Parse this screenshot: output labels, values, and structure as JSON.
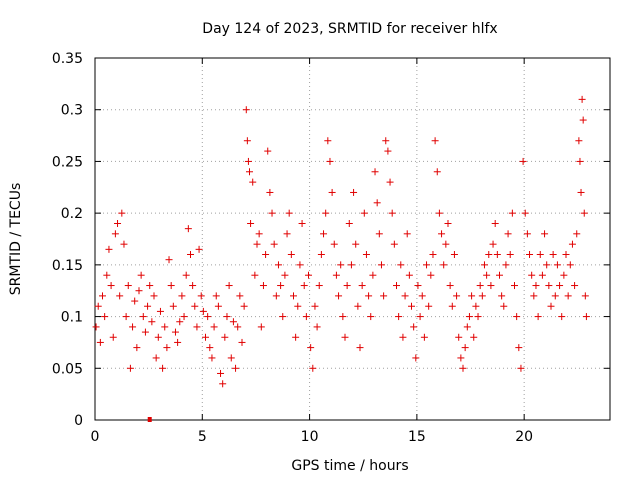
{
  "chart_data": {
    "type": "scatter",
    "title": "Day 124 of 2023, SRMTID for receiver hlfx",
    "xlabel": "GPS time / hours",
    "ylabel": "SRMTID / TECUs",
    "xlim": [
      0,
      24
    ],
    "ylim": [
      0,
      0.35
    ],
    "xticks": [
      0,
      5,
      10,
      15,
      20
    ],
    "xtick_labels": [
      "0",
      "5",
      "10",
      "15",
      "20"
    ],
    "yticks": [
      0,
      0.05,
      0.1,
      0.15,
      0.2,
      0.25,
      0.3,
      0.35
    ],
    "ytick_labels": [
      "0",
      "0.05",
      "0.1",
      "0.15",
      "0.2",
      "0.25",
      "0.3",
      "0.35"
    ],
    "grid": true,
    "marker": "+",
    "color": "#e00000",
    "series": [
      {
        "name": "hlfx",
        "points": [
          [
            0.05,
            0.09
          ],
          [
            0.15,
            0.11
          ],
          [
            0.25,
            0.075
          ],
          [
            0.35,
            0.12
          ],
          [
            0.45,
            0.1
          ],
          [
            0.55,
            0.14
          ],
          [
            0.65,
            0.165
          ],
          [
            0.75,
            0.13
          ],
          [
            0.85,
            0.08
          ],
          [
            0.95,
            0.18
          ],
          [
            1.05,
            0.19
          ],
          [
            1.15,
            0.12
          ],
          [
            1.25,
            0.2
          ],
          [
            1.35,
            0.17
          ],
          [
            1.45,
            0.1
          ],
          [
            1.55,
            0.13
          ],
          [
            1.65,
            0.05
          ],
          [
            1.75,
            0.09
          ],
          [
            1.85,
            0.115
          ],
          [
            1.95,
            0.07
          ],
          [
            2.05,
            0.125
          ],
          [
            2.15,
            0.14
          ],
          [
            2.25,
            0.1
          ],
          [
            2.35,
            0.085
          ],
          [
            2.45,
            0.11
          ],
          [
            2.55,
            0.13
          ],
          [
            2.65,
            0.095
          ],
          [
            2.75,
            0.12
          ],
          [
            2.85,
            0.06
          ],
          [
            2.95,
            0.08
          ],
          [
            3.05,
            0.105
          ],
          [
            3.15,
            0.05
          ],
          [
            3.25,
            0.09
          ],
          [
            3.35,
            0.07
          ],
          [
            3.45,
            0.155
          ],
          [
            3.55,
            0.13
          ],
          [
            3.65,
            0.11
          ],
          [
            3.75,
            0.085
          ],
          [
            3.85,
            0.075
          ],
          [
            3.95,
            0.095
          ],
          [
            4.05,
            0.12
          ],
          [
            4.15,
            0.1
          ],
          [
            4.25,
            0.14
          ],
          [
            4.35,
            0.185
          ],
          [
            4.45,
            0.16
          ],
          [
            4.55,
            0.13
          ],
          [
            4.65,
            0.11
          ],
          [
            4.75,
            0.09
          ],
          [
            4.85,
            0.165
          ],
          [
            4.95,
            0.12
          ],
          [
            5.05,
            0.105
          ],
          [
            5.15,
            0.08
          ],
          [
            5.25,
            0.1
          ],
          [
            5.35,
            0.07
          ],
          [
            5.45,
            0.06
          ],
          [
            5.55,
            0.09
          ],
          [
            5.65,
            0.12
          ],
          [
            5.75,
            0.11
          ],
          [
            5.85,
            0.045
          ],
          [
            5.95,
            0.035
          ],
          [
            6.05,
            0.08
          ],
          [
            6.15,
            0.1
          ],
          [
            6.25,
            0.13
          ],
          [
            6.35,
            0.06
          ],
          [
            6.45,
            0.095
          ],
          [
            6.55,
            0.05
          ],
          [
            6.65,
            0.09
          ],
          [
            6.75,
            0.12
          ],
          [
            6.85,
            0.075
          ],
          [
            6.95,
            0.11
          ],
          [
            7.05,
            0.3
          ],
          [
            7.1,
            0.27
          ],
          [
            7.15,
            0.25
          ],
          [
            7.2,
            0.24
          ],
          [
            7.25,
            0.19
          ],
          [
            7.35,
            0.23
          ],
          [
            7.45,
            0.14
          ],
          [
            7.55,
            0.17
          ],
          [
            7.65,
            0.18
          ],
          [
            7.75,
            0.09
          ],
          [
            7.85,
            0.13
          ],
          [
            7.95,
            0.16
          ],
          [
            8.05,
            0.26
          ],
          [
            8.15,
            0.22
          ],
          [
            8.25,
            0.2
          ],
          [
            8.35,
            0.17
          ],
          [
            8.45,
            0.12
          ],
          [
            8.55,
            0.15
          ],
          [
            8.65,
            0.13
          ],
          [
            8.75,
            0.1
          ],
          [
            8.85,
            0.14
          ],
          [
            8.95,
            0.18
          ],
          [
            9.05,
            0.2
          ],
          [
            9.15,
            0.16
          ],
          [
            9.25,
            0.12
          ],
          [
            9.35,
            0.08
          ],
          [
            9.45,
            0.11
          ],
          [
            9.55,
            0.15
          ],
          [
            9.65,
            0.19
          ],
          [
            9.75,
            0.13
          ],
          [
            9.85,
            0.1
          ],
          [
            9.95,
            0.14
          ],
          [
            10.05,
            0.07
          ],
          [
            10.15,
            0.05
          ],
          [
            10.25,
            0.11
          ],
          [
            10.35,
            0.09
          ],
          [
            10.45,
            0.13
          ],
          [
            10.55,
            0.16
          ],
          [
            10.65,
            0.18
          ],
          [
            10.75,
            0.2
          ],
          [
            10.85,
            0.27
          ],
          [
            10.95,
            0.25
          ],
          [
            11.05,
            0.22
          ],
          [
            11.15,
            0.17
          ],
          [
            11.25,
            0.14
          ],
          [
            11.35,
            0.12
          ],
          [
            11.45,
            0.15
          ],
          [
            11.55,
            0.1
          ],
          [
            11.65,
            0.08
          ],
          [
            11.75,
            0.13
          ],
          [
            11.85,
            0.19
          ],
          [
            11.95,
            0.15
          ],
          [
            12.05,
            0.22
          ],
          [
            12.15,
            0.17
          ],
          [
            12.25,
            0.11
          ],
          [
            12.35,
            0.07
          ],
          [
            12.45,
            0.13
          ],
          [
            12.55,
            0.2
          ],
          [
            12.65,
            0.16
          ],
          [
            12.75,
            0.12
          ],
          [
            12.85,
            0.1
          ],
          [
            12.95,
            0.14
          ],
          [
            13.05,
            0.24
          ],
          [
            13.15,
            0.21
          ],
          [
            13.25,
            0.18
          ],
          [
            13.35,
            0.15
          ],
          [
            13.45,
            0.12
          ],
          [
            13.55,
            0.27
          ],
          [
            13.65,
            0.26
          ],
          [
            13.75,
            0.23
          ],
          [
            13.85,
            0.2
          ],
          [
            13.95,
            0.17
          ],
          [
            14.05,
            0.13
          ],
          [
            14.15,
            0.1
          ],
          [
            14.25,
            0.15
          ],
          [
            14.35,
            0.08
          ],
          [
            14.45,
            0.12
          ],
          [
            14.55,
            0.18
          ],
          [
            14.65,
            0.14
          ],
          [
            14.75,
            0.11
          ],
          [
            14.85,
            0.09
          ],
          [
            14.95,
            0.06
          ],
          [
            15.05,
            0.13
          ],
          [
            15.15,
            0.1
          ],
          [
            15.25,
            0.12
          ],
          [
            15.35,
            0.08
          ],
          [
            15.45,
            0.15
          ],
          [
            15.55,
            0.11
          ],
          [
            15.65,
            0.14
          ],
          [
            15.75,
            0.16
          ],
          [
            15.85,
            0.27
          ],
          [
            15.95,
            0.24
          ],
          [
            16.05,
            0.2
          ],
          [
            16.15,
            0.18
          ],
          [
            16.25,
            0.15
          ],
          [
            16.35,
            0.17
          ],
          [
            16.45,
            0.19
          ],
          [
            16.55,
            0.13
          ],
          [
            16.65,
            0.11
          ],
          [
            16.75,
            0.16
          ],
          [
            16.85,
            0.12
          ],
          [
            16.95,
            0.08
          ],
          [
            17.05,
            0.06
          ],
          [
            17.15,
            0.05
          ],
          [
            17.25,
            0.07
          ],
          [
            17.35,
            0.09
          ],
          [
            17.45,
            0.1
          ],
          [
            17.55,
            0.12
          ],
          [
            17.65,
            0.08
          ],
          [
            17.75,
            0.11
          ],
          [
            17.85,
            0.1
          ],
          [
            17.95,
            0.13
          ],
          [
            18.05,
            0.12
          ],
          [
            18.15,
            0.15
          ],
          [
            18.25,
            0.14
          ],
          [
            18.35,
            0.16
          ],
          [
            18.45,
            0.13
          ],
          [
            18.55,
            0.17
          ],
          [
            18.65,
            0.19
          ],
          [
            18.75,
            0.16
          ],
          [
            18.85,
            0.14
          ],
          [
            18.95,
            0.12
          ],
          [
            19.05,
            0.11
          ],
          [
            19.15,
            0.15
          ],
          [
            19.25,
            0.18
          ],
          [
            19.35,
            0.16
          ],
          [
            19.45,
            0.2
          ],
          [
            19.55,
            0.13
          ],
          [
            19.65,
            0.1
          ],
          [
            19.75,
            0.07
          ],
          [
            19.85,
            0.05
          ],
          [
            19.95,
            0.25
          ],
          [
            20.05,
            0.2
          ],
          [
            20.15,
            0.18
          ],
          [
            20.25,
            0.16
          ],
          [
            20.35,
            0.14
          ],
          [
            20.45,
            0.12
          ],
          [
            20.55,
            0.13
          ],
          [
            20.65,
            0.1
          ],
          [
            20.75,
            0.16
          ],
          [
            20.85,
            0.14
          ],
          [
            20.95,
            0.18
          ],
          [
            21.05,
            0.15
          ],
          [
            21.15,
            0.13
          ],
          [
            21.25,
            0.11
          ],
          [
            21.35,
            0.16
          ],
          [
            21.45,
            0.12
          ],
          [
            21.55,
            0.15
          ],
          [
            21.65,
            0.13
          ],
          [
            21.75,
            0.1
          ],
          [
            21.85,
            0.14
          ],
          [
            21.95,
            0.16
          ],
          [
            22.05,
            0.12
          ],
          [
            22.15,
            0.15
          ],
          [
            22.25,
            0.17
          ],
          [
            22.35,
            0.13
          ],
          [
            22.45,
            0.18
          ],
          [
            22.55,
            0.27
          ],
          [
            22.6,
            0.25
          ],
          [
            22.65,
            0.22
          ],
          [
            22.7,
            0.31
          ],
          [
            22.75,
            0.29
          ],
          [
            22.8,
            0.2
          ],
          [
            22.85,
            0.12
          ],
          [
            22.9,
            0.1
          ]
        ]
      }
    ],
    "outlier_points": [
      [
        2.55,
        0.0
      ]
    ]
  }
}
